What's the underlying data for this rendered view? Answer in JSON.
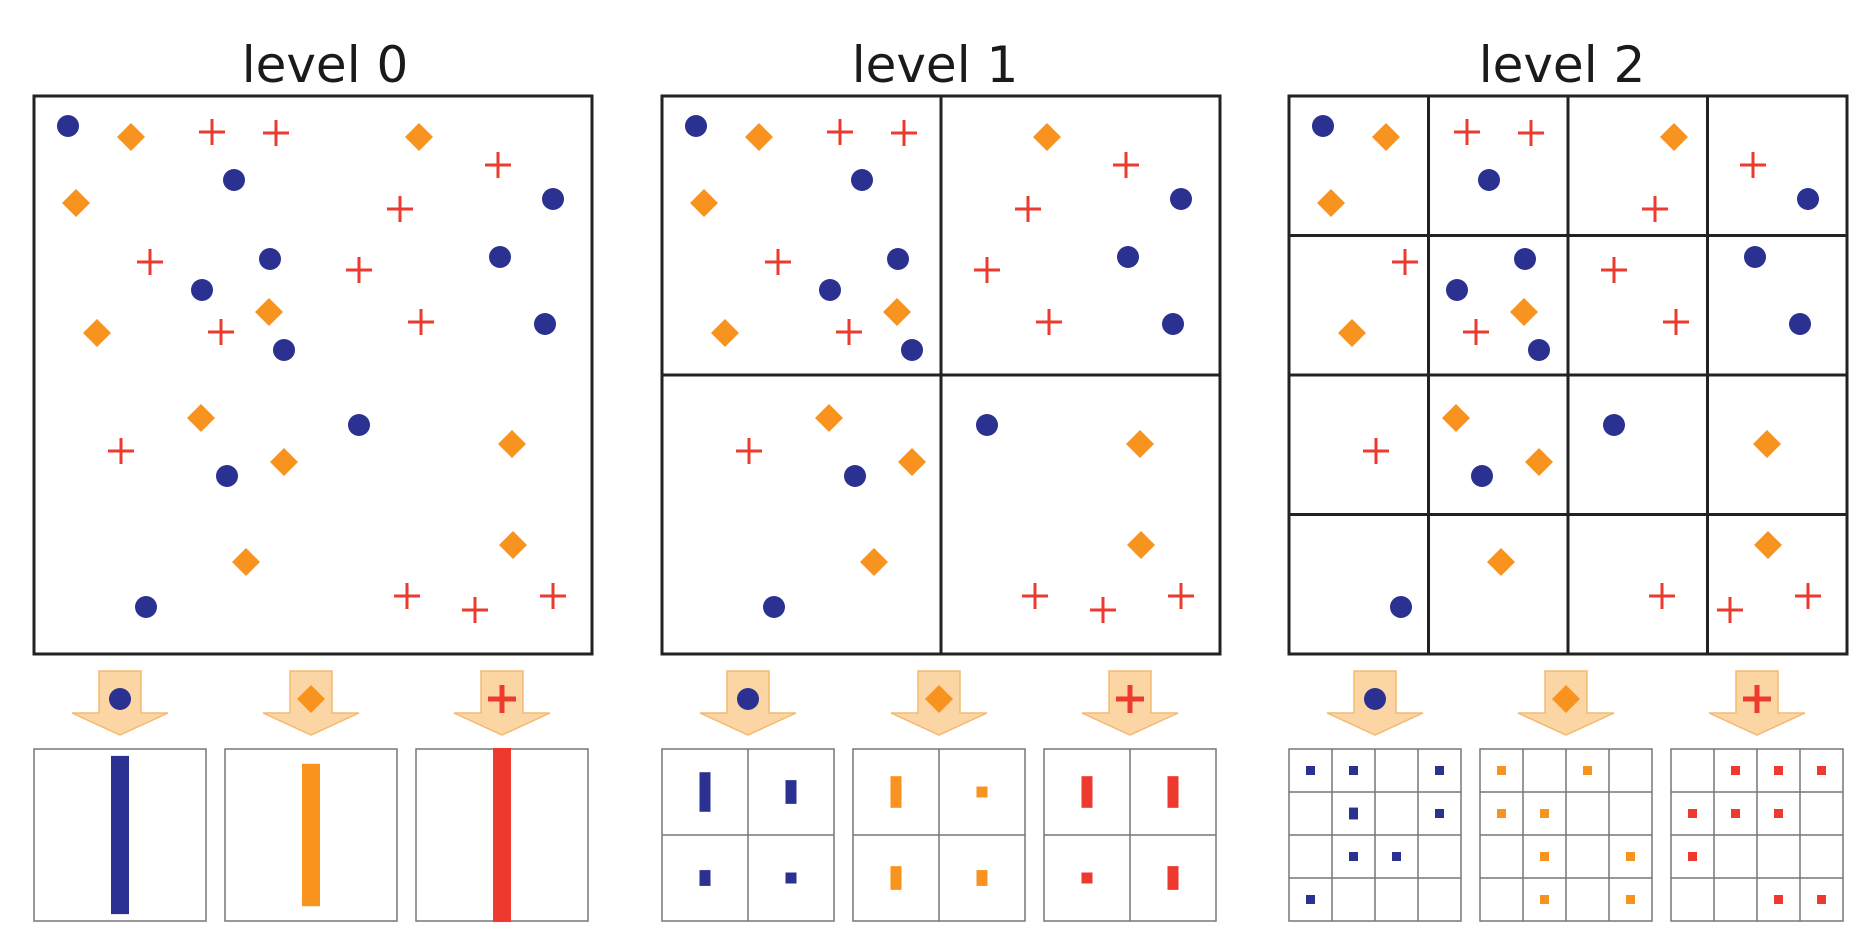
{
  "titles": [
    "level 0",
    "level 1",
    "level 2"
  ],
  "colors": {
    "circle": "#2b3190",
    "diamond": "#f7931e",
    "plus": "#ee3a2e",
    "arrow_fill": "#fbd6a4",
    "arrow_stroke": "#f5b870",
    "frame": "#222222",
    "hist_frame": "#777777"
  },
  "icons": {
    "circle": "circle-icon",
    "diamond": "diamond-icon",
    "plus": "plus-icon",
    "arrow": "down-arrow-icon"
  },
  "levels": [
    {
      "grid": 1,
      "histograms": {
        "circle": [
          [
            1.0
          ]
        ],
        "diamond": [
          [
            0.9
          ]
        ],
        "plus": [
          [
            1.1
          ]
        ]
      }
    },
    {
      "grid": 2,
      "histograms": {
        "circle": [
          [
            0.5,
            0.3
          ],
          [
            0.2,
            0.1
          ]
        ],
        "diamond": [
          [
            0.4,
            0.1
          ],
          [
            0.3,
            0.2
          ]
        ],
        "plus": [
          [
            0.4,
            0.4
          ],
          [
            0.1,
            0.3
          ]
        ]
      }
    },
    {
      "grid": 4,
      "histograms": {
        "circle": [
          [
            0.1,
            0.1,
            0,
            0.1
          ],
          [
            0,
            0.3,
            0,
            0.2
          ],
          [
            0,
            0.1,
            0.1,
            0
          ],
          [
            0.1,
            0,
            0,
            0
          ]
        ],
        "diamond": [
          [
            0.2,
            0,
            0.1,
            0
          ],
          [
            0.1,
            0.1,
            0,
            0
          ],
          [
            0,
            0.2,
            0,
            0.1
          ],
          [
            0,
            0.1,
            0,
            0.1
          ]
        ],
        "plus": [
          [
            0,
            0.2,
            0.1,
            0.1
          ],
          [
            0.1,
            0.1,
            0.2,
            0
          ],
          [
            0.1,
            0,
            0,
            0
          ],
          [
            0,
            0,
            0.1,
            0.2
          ]
        ]
      }
    }
  ]
}
